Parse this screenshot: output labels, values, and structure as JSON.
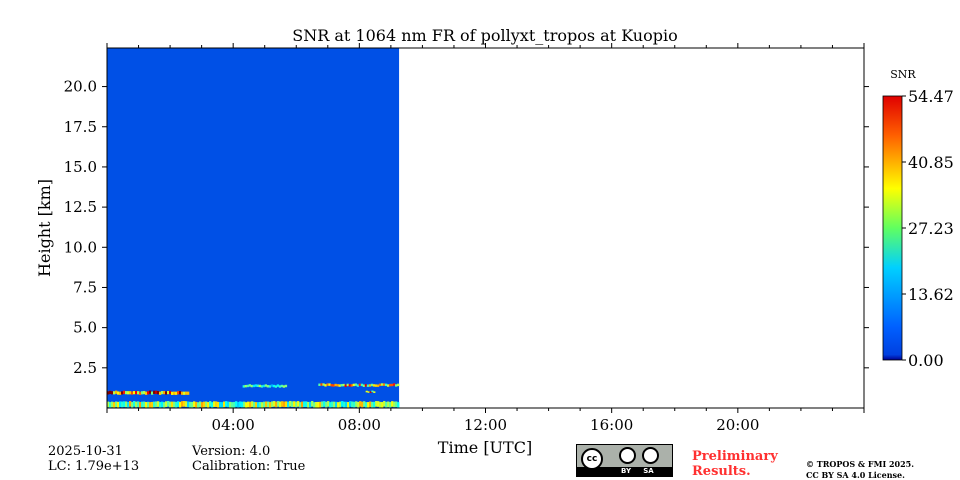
{
  "chart_data": {
    "type": "heatmap",
    "title": "SNR at 1064 nm FR of pollyxt_tropos at Kuopio",
    "xlabel": "Time [UTC]",
    "ylabel": "Height [km]",
    "xlim_hours": [
      0,
      24
    ],
    "ylim_km": [
      0,
      22.4
    ],
    "x_ticks": [
      "04:00",
      "08:00",
      "12:00",
      "16:00",
      "20:00"
    ],
    "x_tick_hours": [
      4,
      8,
      12,
      16,
      20
    ],
    "y_ticks": [
      "2.5",
      "5.0",
      "7.5",
      "10.0",
      "12.5",
      "15.0",
      "17.5",
      "20.0"
    ],
    "y_tick_values": [
      2.5,
      5.0,
      7.5,
      10.0,
      12.5,
      15.0,
      17.5,
      20.0
    ],
    "colorbar": {
      "label": "SNR",
      "ticks": [
        "0.00",
        "13.62",
        "27.23",
        "40.85",
        "54.47"
      ],
      "range": [
        0,
        54.47
      ],
      "colormap": "jet"
    },
    "data_end_hour": 9.26,
    "background_snr": 2,
    "features": [
      {
        "name": "near-surface layer",
        "t0": 0,
        "t1": 9.26,
        "h0": 0.05,
        "h1": 0.4,
        "snr": 30
      },
      {
        "name": "boundary layer top",
        "t0": 0,
        "t1": 2.6,
        "h0": 0.85,
        "h1": 1.05,
        "snr": 45
      },
      {
        "name": "elevated layer 1",
        "t0": 4.3,
        "t1": 5.7,
        "h0": 1.3,
        "h1": 1.45,
        "snr": 25
      },
      {
        "name": "elevated layer 2",
        "t0": 6.7,
        "t1": 9.26,
        "h0": 1.35,
        "h1": 1.5,
        "snr": 38
      },
      {
        "name": "lower patch",
        "t0": 8.2,
        "t1": 8.5,
        "h0": 0.95,
        "h1": 1.05,
        "snr": 40
      }
    ]
  },
  "footer": {
    "date": "2025-10-31",
    "lc": "LC: 1.79e+13",
    "version": "Version: 4.0",
    "calibration": "Calibration: True",
    "license_badge": "CC BY SA",
    "preliminary_line1": "Preliminary",
    "preliminary_line2": "Results.",
    "copyright": "© TROPOS & FMI 2025.",
    "license": "CC BY SA 4.0 License."
  }
}
